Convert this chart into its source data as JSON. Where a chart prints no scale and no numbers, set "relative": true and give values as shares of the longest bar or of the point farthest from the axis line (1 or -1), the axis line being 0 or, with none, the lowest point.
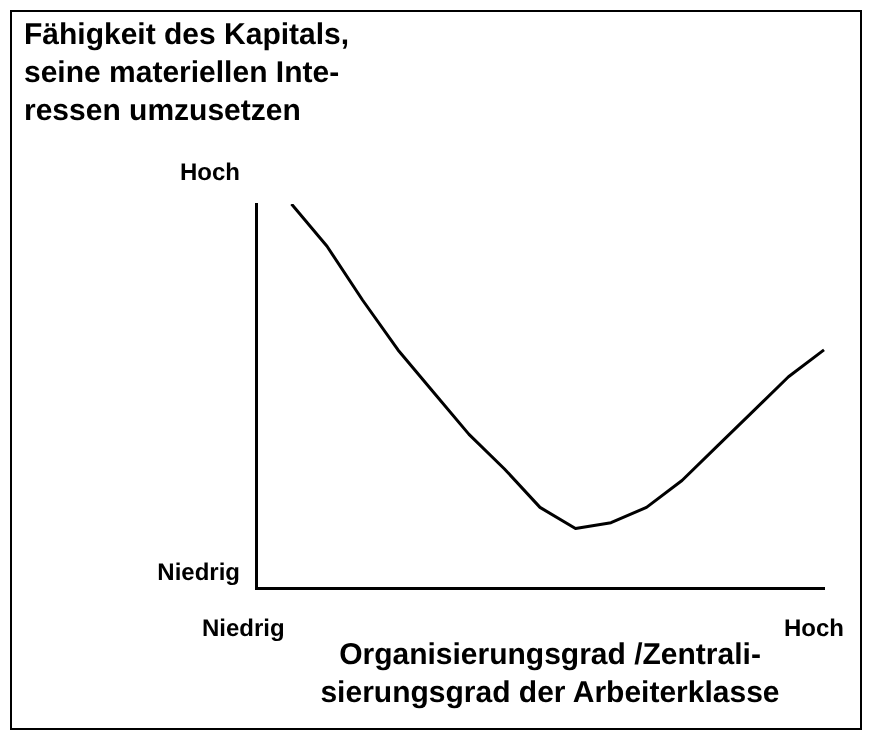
{
  "chart_data": {
    "type": "line",
    "title": "Fähigkeit des Kapitals,\nseine materiellen Inte-\nressen umzusetzen",
    "xlabel": "Organisierungsgrad /Zentrali-\nsierungsgrad der Arbeiterklasse",
    "relative": true,
    "categories": [
      null,
      null,
      null,
      null,
      null,
      null,
      null,
      null,
      null,
      null,
      null,
      null,
      null,
      null,
      null,
      null,
      null
    ],
    "series": [
      {
        "color": "#000000",
        "values": [
          null,
          1.0,
          0.89,
          0.75,
          0.62,
          0.51,
          0.4,
          0.31,
          0.21,
          0.155,
          0.17,
          0.21,
          0.28,
          0.37,
          0.46,
          0.55,
          0.62
        ]
      }
    ],
    "annotations": [
      "Hoch",
      "Niedrig",
      "Niedrig",
      "Hoch"
    ],
    "legend": false,
    "grid": false,
    "marker": "none",
    "line_style": "solid"
  }
}
